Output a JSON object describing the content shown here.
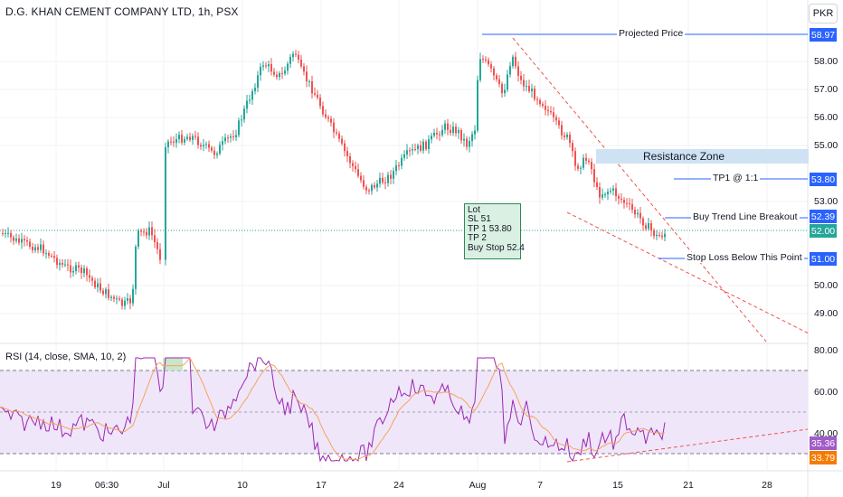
{
  "header": {
    "title": "D.G. KHAN CEMENT COMPANY LTD, 1h, PSX",
    "currency": "PKR"
  },
  "price_axis": {
    "labels": [
      "58.00",
      "57.00",
      "56.00",
      "55.00",
      "53.00",
      "50.00",
      "49.00"
    ]
  },
  "price_tags": {
    "projected": "58.97",
    "tp1": "53.80",
    "buy_breakout": "52.39",
    "last": "52.00",
    "stop_loss": "51.00"
  },
  "annotations": {
    "projected_price": "Projected Price",
    "resistance_zone": "Resistance Zone",
    "tp1": "TP1 @ 1:1",
    "buy_breakout": "Buy Trend Line Breakout",
    "stop_loss": "Stop Loss Below This Point"
  },
  "lot_box": {
    "lines": [
      "Lot",
      "SL  51",
      "TP 1  53.80",
      "TP 2",
      "Buy Stop  52.4"
    ]
  },
  "rsi": {
    "title": "RSI (14, close, SMA, 10, 2)",
    "axis_labels": [
      "80.00",
      "60.00",
      "40.00"
    ],
    "value_rsi": "35.36",
    "value_ma": "33.79"
  },
  "time_axis": {
    "labels": [
      "19",
      "06:30",
      "Jul",
      "10",
      "17",
      "24",
      "Aug",
      "7",
      "15",
      "21",
      "28"
    ]
  },
  "colors": {
    "up": "#26a69a",
    "down": "#ef5350",
    "rsi_line": "#9c27b0",
    "rsi_ma": "#f7a35c",
    "accent": "#2962ff"
  }
}
